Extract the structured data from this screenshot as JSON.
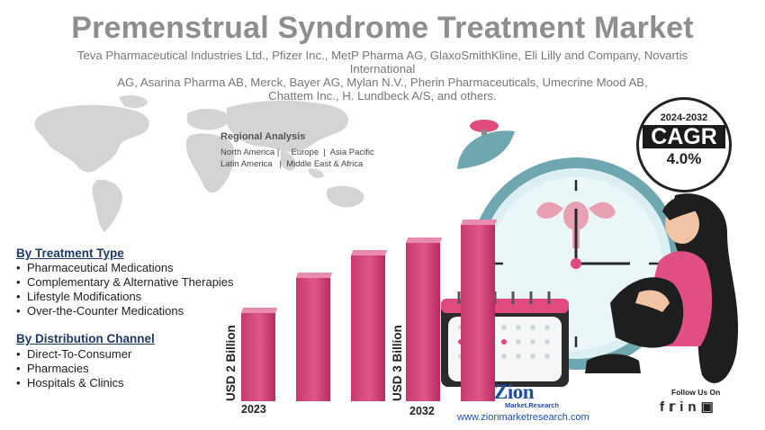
{
  "title": "Premenstrual Syndrome Treatment Market",
  "subtitle_lines": [
    "Teva Pharmaceutical Industries Ltd., Pfizer Inc., MetP Pharma AG, GlaxoSmithKline, Eli Lilly and Company, Novartis International",
    "AG, Asarina Pharma AB, Merck, Bayer AG, Mylan N.V., Pherin Pharmaceuticals, Umecrine Mood AB,",
    "Chattem Inc., H. Lundbeck A/S, and others."
  ],
  "regional": {
    "title": "Regional Analysis",
    "line1": "North America |     Europe  |  Asia Pacific",
    "line2": "Latin America   |  Middle East & Africa"
  },
  "treatment": {
    "heading": "By Treatment Type",
    "items": [
      "Pharmaceutical Medications",
      "Complementary & Alternative Therapies",
      "Lifestyle Modifications",
      "Over-the-Counter Medications"
    ]
  },
  "distribution": {
    "heading": "By Distribution Channel",
    "items": [
      "Direct-To-Consumer",
      "Pharmacies",
      "Hospitals & Clinics"
    ]
  },
  "chart_data": {
    "type": "bar",
    "categories": [
      "2023",
      "",
      "",
      "",
      "2032"
    ],
    "values": [
      2,
      2.4,
      2.65,
      2.8,
      3
    ],
    "start_label": "USD 2 Billion",
    "end_label": "USD 3 Billion",
    "unit": "Billion USD",
    "color": "#d4467a"
  },
  "cagr": {
    "years": "2024-2032",
    "label": "CAGR",
    "value": "4.0%"
  },
  "brand": {
    "logo": "Zion",
    "logo_sub": "Market.Research",
    "url": "www.zionmarketresearch.com",
    "follow": "Follow Us On",
    "social_icons": [
      "facebook-icon",
      "twitter-icon",
      "linkedin-icon",
      "instagram-icon"
    ]
  },
  "colors": {
    "title": "#8e8e8e",
    "accent": "#d4467a",
    "teal": "#6fa7b0",
    "navy": "#1f3864",
    "brand": "#1f4ea3"
  }
}
